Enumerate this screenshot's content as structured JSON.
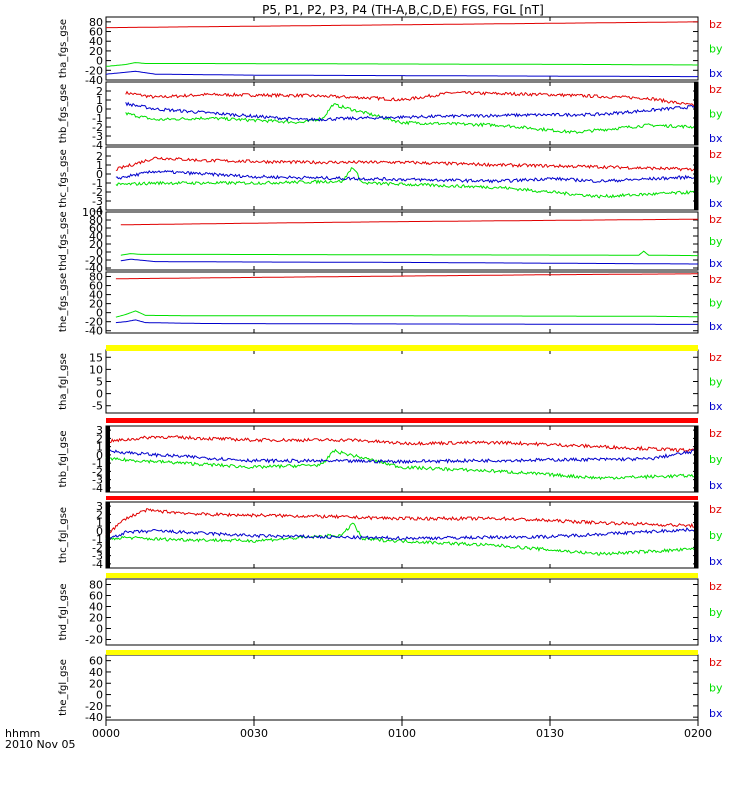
{
  "title": "P5, P1, P2, P3, P4 (TH-A,B,C,D,E) FGS, FGL [nT]",
  "time_axis": {
    "label_line1": "hhmm",
    "label_line2": "2010 Nov 05",
    "ticks": [
      "0000",
      "0030",
      "0100",
      "0130",
      "0200"
    ],
    "range_minutes": [
      0,
      120
    ]
  },
  "colors": {
    "bz": "#e00000",
    "by": "#00e000",
    "bx": "#0000cc",
    "flag_yellow": "#ffff00",
    "flag_red": "#ff0000",
    "frame": "#000000"
  },
  "chart_data": [
    {
      "type": "line",
      "ylabel": "tha_fgs_gse",
      "yticks": [
        "80",
        "60",
        "40",
        "20",
        "0",
        "-20",
        "-40"
      ],
      "ylim": [
        -40,
        90
      ],
      "legend": [
        "bz",
        "by",
        "bx"
      ],
      "series": [
        {
          "name": "bz",
          "x": [
            0,
            30,
            60,
            90,
            120
          ],
          "values": [
            68,
            71,
            74,
            77,
            80
          ]
        },
        {
          "name": "by",
          "x": [
            0,
            2,
            4,
            6,
            8,
            20,
            60,
            100,
            120
          ],
          "values": [
            -12,
            -10,
            -8,
            -4,
            -6,
            -6,
            -7,
            -8,
            -9
          ]
        },
        {
          "name": "bx",
          "x": [
            0,
            3,
            6,
            10,
            30,
            60,
            90,
            120
          ],
          "values": [
            -28,
            -25,
            -22,
            -28,
            -30,
            -31,
            -32,
            -33
          ]
        }
      ]
    },
    {
      "type": "line",
      "ylabel": "thb_fgs_gse",
      "yticks": [
        "2",
        "1",
        "0",
        "-1",
        "-2",
        "-3",
        "-4"
      ],
      "ylim": [
        -4,
        3
      ],
      "legend": [
        "bz",
        "by",
        "bx"
      ],
      "series": [
        {
          "name": "bz",
          "x": [
            4,
            10,
            20,
            40,
            55,
            60,
            70,
            90,
            110,
            120
          ],
          "values": [
            1.8,
            1.3,
            1.6,
            1.5,
            1.2,
            1.0,
            1.8,
            1.6,
            1.2,
            0.3
          ]
        },
        {
          "name": "by",
          "x": [
            4,
            10,
            20,
            40,
            44,
            46,
            60,
            80,
            95,
            110,
            120
          ],
          "values": [
            -0.5,
            -1.2,
            -1.0,
            -1.5,
            -1.0,
            0.5,
            -1.5,
            -1.8,
            -2.6,
            -1.8,
            -2.0
          ]
        },
        {
          "name": "bx",
          "x": [
            4,
            10,
            20,
            40,
            60,
            80,
            100,
            120
          ],
          "values": [
            0.6,
            0.0,
            -0.4,
            -1.2,
            -0.9,
            -0.7,
            -0.6,
            0.3
          ]
        }
      ]
    },
    {
      "type": "line",
      "ylabel": "thc_fgs_gse",
      "yticks": [
        "2",
        "1",
        "0",
        "-1",
        "-2",
        "-3",
        "-4"
      ],
      "ylim": [
        -4,
        3
      ],
      "legend": [
        "bz",
        "by",
        "bx"
      ],
      "series": [
        {
          "name": "bz",
          "x": [
            2,
            10,
            20,
            40,
            60,
            80,
            100,
            120
          ],
          "values": [
            0.5,
            1.8,
            1.5,
            1.3,
            1.3,
            1.0,
            0.8,
            0.5
          ]
        },
        {
          "name": "by",
          "x": [
            2,
            10,
            30,
            48,
            50,
            52,
            80,
            100,
            120
          ],
          "values": [
            -1.2,
            -1.0,
            -1.0,
            -0.8,
            0.8,
            -1.0,
            -1.5,
            -2.5,
            -2.0
          ]
        },
        {
          "name": "bx",
          "x": [
            2,
            10,
            30,
            60,
            80,
            90,
            100,
            120
          ],
          "values": [
            -0.5,
            0.3,
            -0.3,
            -0.6,
            -0.8,
            -0.5,
            -0.8,
            -0.3
          ]
        }
      ]
    },
    {
      "type": "line",
      "ylabel": "thd_fgs_gse",
      "yticks": [
        "100",
        "80",
        "60",
        "40",
        "20",
        "0",
        "-20",
        "-40"
      ],
      "ylim": [
        -45,
        100
      ],
      "legend": [
        "bz",
        "by",
        "bx"
      ],
      "series": [
        {
          "name": "bz",
          "x": [
            3,
            30,
            60,
            90,
            120
          ],
          "values": [
            68,
            72,
            76,
            79,
            82
          ]
        },
        {
          "name": "by",
          "x": [
            3,
            5,
            7,
            20,
            60,
            108,
            109,
            110,
            120
          ],
          "values": [
            -8,
            -4,
            -6,
            -6,
            -7,
            -8,
            2,
            -8,
            -9
          ]
        },
        {
          "name": "bx",
          "x": [
            3,
            5,
            10,
            30,
            60,
            90,
            120
          ],
          "values": [
            -22,
            -18,
            -24,
            -25,
            -26,
            -28,
            -30
          ]
        }
      ]
    },
    {
      "type": "line",
      "ylabel": "the_fgs_gse",
      "yticks": [
        "80",
        "60",
        "40",
        "20",
        "0",
        "-20",
        "-40"
      ],
      "ylim": [
        -45,
        90
      ],
      "legend": [
        "bz",
        "by",
        "bx"
      ],
      "series": [
        {
          "name": "bz",
          "x": [
            2,
            30,
            60,
            90,
            120
          ],
          "values": [
            75,
            78,
            81,
            84,
            86
          ]
        },
        {
          "name": "by",
          "x": [
            2,
            4,
            6,
            8,
            20,
            60,
            110,
            120
          ],
          "values": [
            -10,
            -4,
            4,
            -6,
            -7,
            -7,
            -8,
            -9
          ]
        },
        {
          "name": "bx",
          "x": [
            2,
            4,
            6,
            8,
            20,
            60,
            120
          ],
          "values": [
            -22,
            -20,
            -16,
            -22,
            -24,
            -25,
            -26
          ]
        }
      ]
    },
    {
      "type": "line",
      "ylabel": "tha_fgl_gse",
      "yticks": [
        "15",
        "10",
        "5",
        "0",
        "-5"
      ],
      "ylim": [
        -8,
        18
      ],
      "legend": [
        "bz",
        "by",
        "bx"
      ],
      "series": []
    },
    {
      "type": "line",
      "ylabel": "thb_fgl_gse",
      "yticks": [
        "3",
        "2",
        "1",
        "0",
        "-1",
        "-2",
        "-3",
        "-4"
      ],
      "ylim": [
        -4.5,
        3.5
      ],
      "legend": [
        "bz",
        "by",
        "bx"
      ],
      "series": [
        {
          "name": "bz",
          "x": [
            0,
            10,
            30,
            50,
            60,
            80,
            100,
            120
          ],
          "values": [
            1.6,
            2.2,
            1.8,
            1.8,
            1.4,
            1.5,
            1.0,
            0.5
          ]
        },
        {
          "name": "by",
          "x": [
            0,
            10,
            30,
            44,
            46,
            60,
            80,
            100,
            120
          ],
          "values": [
            -0.5,
            -0.8,
            -1.5,
            -1.2,
            0.5,
            -1.5,
            -2.0,
            -2.8,
            -2.5
          ]
        },
        {
          "name": "bx",
          "x": [
            0,
            10,
            30,
            60,
            90,
            110,
            120
          ],
          "values": [
            0.5,
            0.0,
            -0.7,
            -0.8,
            -0.6,
            -0.5,
            0.5
          ]
        }
      ]
    },
    {
      "type": "line",
      "ylabel": "thc_fgl_gse",
      "yticks": [
        "3",
        "2",
        "1",
        "0",
        "-1",
        "-2",
        "-3",
        "-4"
      ],
      "ylim": [
        -4.5,
        3.5
      ],
      "legend": [
        "bz",
        "by",
        "bx"
      ],
      "series": [
        {
          "name": "bz",
          "x": [
            0,
            4,
            8,
            20,
            40,
            60,
            80,
            100,
            120
          ],
          "values": [
            -0.5,
            1.5,
            2.5,
            2.0,
            1.8,
            1.5,
            1.5,
            1.0,
            0.6
          ]
        },
        {
          "name": "by",
          "x": [
            0,
            4,
            10,
            30,
            48,
            50,
            52,
            80,
            100,
            120
          ],
          "values": [
            -1.0,
            -0.8,
            -1.0,
            -1.2,
            -0.5,
            1.0,
            -1.0,
            -1.8,
            -2.8,
            -2.2
          ]
        },
        {
          "name": "bx",
          "x": [
            0,
            4,
            10,
            30,
            60,
            90,
            120
          ],
          "values": [
            -1.0,
            -0.2,
            0.0,
            -0.6,
            -0.9,
            -0.7,
            0.2
          ]
        }
      ]
    },
    {
      "type": "line",
      "ylabel": "thd_fgl_gse",
      "yticks": [
        "80",
        "60",
        "40",
        "20",
        "0",
        "-20"
      ],
      "ylim": [
        -30,
        90
      ],
      "legend": [
        "bz",
        "by",
        "bx"
      ],
      "series": []
    },
    {
      "type": "line",
      "ylabel": "the_fgl_gse",
      "yticks": [
        "60",
        "40",
        "20",
        "0",
        "-20",
        "-40"
      ],
      "ylim": [
        -45,
        70
      ],
      "legend": [
        "bz",
        "by",
        "bx"
      ],
      "series": []
    }
  ]
}
